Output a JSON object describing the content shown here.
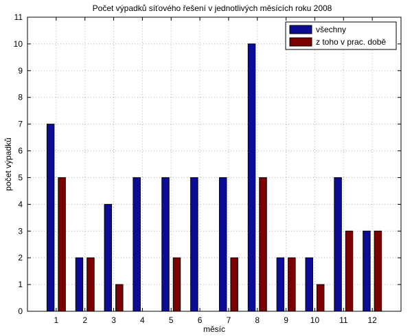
{
  "chart_data": {
    "type": "bar",
    "title": "Počet výpadků síťového řešení v jednotlivých měsících roku 2008",
    "xlabel": "měsíc",
    "ylabel": "počet výpadků",
    "categories": [
      "1",
      "2",
      "3",
      "4",
      "5",
      "6",
      "7",
      "8",
      "9",
      "10",
      "11",
      "12"
    ],
    "ylim": [
      0,
      11
    ],
    "yticks": [
      "0",
      "1",
      "2",
      "3",
      "4",
      "5",
      "6",
      "7",
      "8",
      "9",
      "10",
      "11"
    ],
    "grid": true,
    "legend_position": "top-right",
    "series": [
      {
        "name": "všechny",
        "color": "#0c0c96",
        "values": [
          7,
          2,
          4,
          5,
          5,
          5,
          5,
          10,
          2,
          2,
          5,
          3
        ]
      },
      {
        "name": "z toho v prac. době",
        "color": "#7d0000",
        "values": [
          5,
          2,
          1,
          0,
          2,
          0,
          2,
          5,
          2,
          1,
          3,
          3
        ]
      }
    ]
  }
}
